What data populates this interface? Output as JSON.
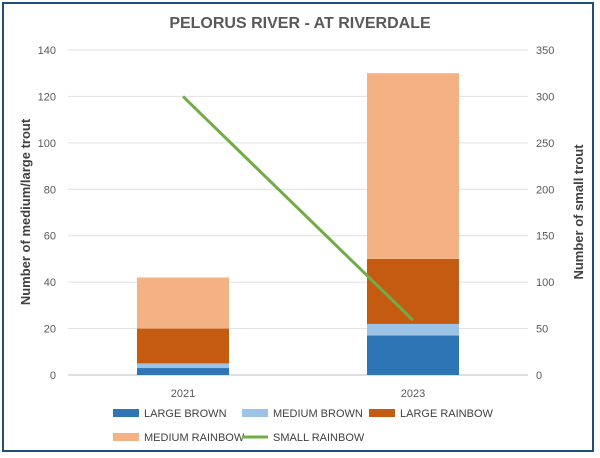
{
  "chart_data": {
    "type": "bar",
    "title": "PELORUS RIVER - AT RIVERDALE",
    "categories": [
      "2021",
      "2023"
    ],
    "ylabel": "Number of medium/large trout",
    "y2label": "Number of small trout",
    "ylim": [
      0,
      140
    ],
    "y2lim": [
      0,
      350
    ],
    "yticks": [
      0,
      20,
      40,
      60,
      80,
      100,
      120,
      140
    ],
    "y2ticks": [
      0,
      50,
      100,
      150,
      200,
      250,
      300,
      350
    ],
    "grid": true,
    "legend_position": "bottom",
    "stacked": true,
    "series": [
      {
        "name": "LARGE BROWN",
        "kind": "bar",
        "axis": "left",
        "color": "#2e75b6",
        "values": [
          3,
          17
        ]
      },
      {
        "name": "MEDIUM BROWN",
        "kind": "bar",
        "axis": "left",
        "color": "#9dc3e6",
        "values": [
          2,
          5
        ]
      },
      {
        "name": "LARGE RAINBOW",
        "kind": "bar",
        "axis": "left",
        "color": "#c55a11",
        "values": [
          15,
          28
        ]
      },
      {
        "name": "MEDIUM RAINBOW",
        "kind": "bar",
        "axis": "left",
        "color": "#f4b183",
        "values": [
          22,
          80
        ]
      },
      {
        "name": "SMALL RAINBOW",
        "kind": "line",
        "axis": "right",
        "color": "#70ad47",
        "values": [
          300,
          59
        ]
      }
    ]
  }
}
